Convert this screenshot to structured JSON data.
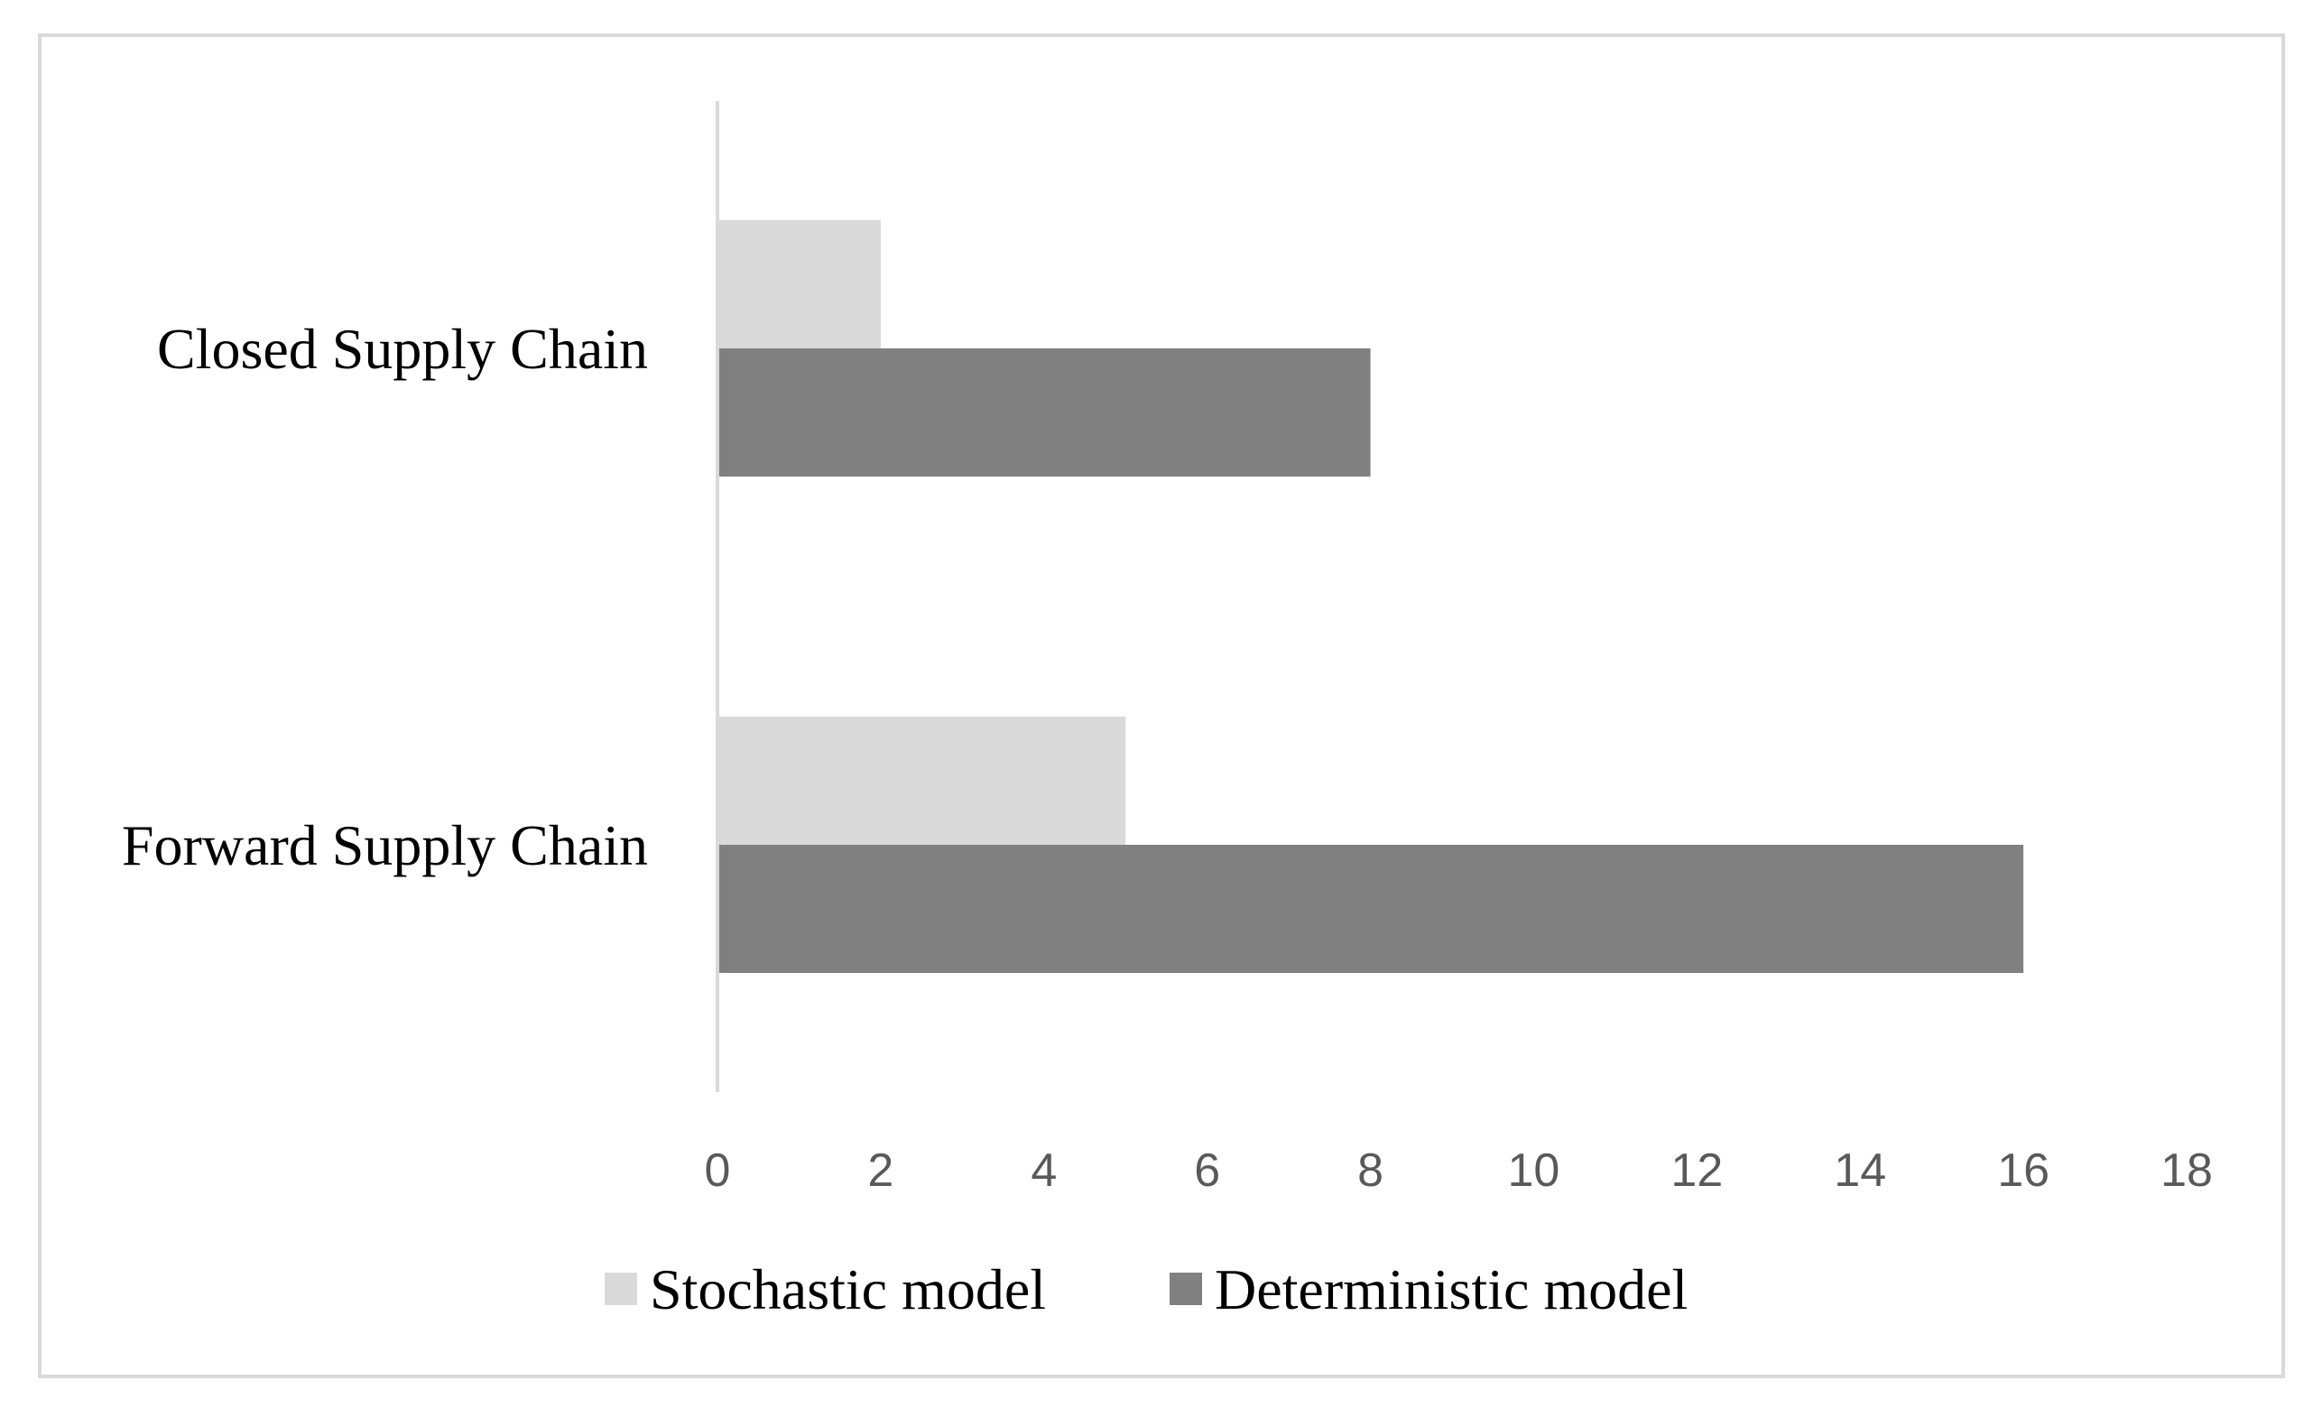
{
  "chart_data": {
    "type": "bar",
    "orientation": "horizontal",
    "categories": [
      "Closed Supply Chain",
      "Forward Supply Chain"
    ],
    "series": [
      {
        "name": "Stochastic model",
        "values": [
          2,
          5
        ],
        "color": "#d9d9d9"
      },
      {
        "name": "Deterministic model",
        "values": [
          8,
          16
        ],
        "color": "#808080"
      }
    ],
    "xlim": [
      0,
      18
    ],
    "xticks": [
      0,
      2,
      4,
      6,
      8,
      10,
      12,
      14,
      16,
      18
    ],
    "grid": false,
    "legend_position": "bottom",
    "axis_color": "#d9d9d9"
  }
}
